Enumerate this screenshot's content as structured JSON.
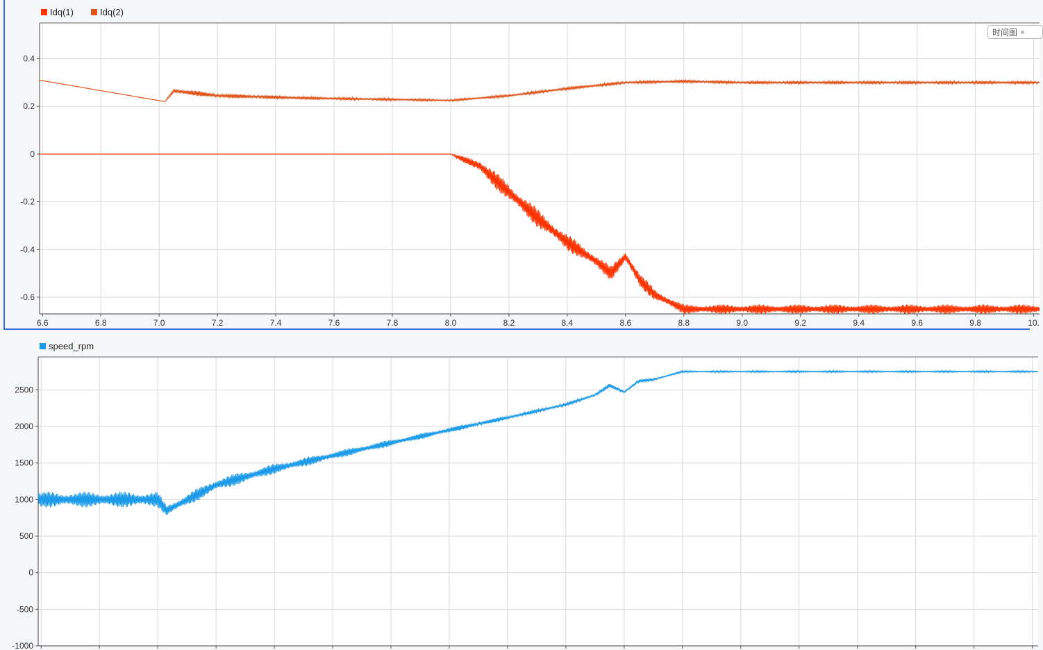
{
  "badge": {
    "label": "时间图"
  },
  "chart_data": [
    {
      "type": "line",
      "title": "",
      "xlabel": "",
      "ylabel": "",
      "xlim": [
        6.59,
        10.02
      ],
      "ylim": [
        -0.67,
        0.55
      ],
      "xticks": [
        6.6,
        6.8,
        7.0,
        7.2,
        7.4,
        7.6,
        7.8,
        8.0,
        8.2,
        8.4,
        8.6,
        8.8,
        9.0,
        9.2,
        9.4,
        9.6,
        9.8,
        10.0
      ],
      "xtick_labels": [
        "6.6",
        "6.8",
        "7.0",
        "7.2",
        "7.4",
        "7.6",
        "7.8",
        "8.0",
        "8.2",
        "8.4",
        "8.6",
        "8.8",
        "9.0",
        "9.2",
        "9.4",
        "9.6",
        "9.8",
        "10."
      ],
      "yticks": [
        0.4,
        0.2,
        0,
        -0.2,
        -0.4,
        -0.6
      ],
      "ytick_labels": [
        "0.4",
        "0.2",
        "0",
        "-0.2",
        "-0.4",
        "-0.6"
      ],
      "grid": true,
      "legend": "top-left",
      "series": [
        {
          "name": "Idq(1)",
          "color": "#ff3300",
          "x": [
            6.59,
            7.0,
            7.5,
            8.0,
            8.1,
            8.2,
            8.3,
            8.4,
            8.5,
            8.55,
            8.6,
            8.65,
            8.7,
            8.8,
            9.0,
            9.5,
            10.02
          ],
          "values": [
            0,
            0,
            0,
            0,
            -0.05,
            -0.16,
            -0.27,
            -0.37,
            -0.45,
            -0.5,
            -0.43,
            -0.53,
            -0.59,
            -0.65,
            -0.65,
            -0.65,
            -0.65
          ],
          "ripple": [
            0,
            0,
            0,
            0,
            0.03,
            0.04,
            0.04,
            0.035,
            0.03,
            0.03,
            0.03,
            0.03,
            0.025,
            0.02,
            0.02,
            0.02,
            0.02
          ]
        },
        {
          "name": "Idq(2)",
          "color": "#e0541a",
          "x": [
            6.59,
            7.02,
            7.05,
            7.2,
            7.5,
            8.0,
            8.2,
            8.4,
            8.6,
            8.8,
            9.0,
            9.5,
            10.02
          ],
          "values": [
            0.31,
            0.22,
            0.265,
            0.245,
            0.235,
            0.225,
            0.245,
            0.275,
            0.3,
            0.305,
            0.3,
            0.3,
            0.3
          ],
          "ripple": [
            0,
            0,
            0.012,
            0.009,
            0.006,
            0.004,
            0.005,
            0.006,
            0.006,
            0.006,
            0.006,
            0.006,
            0.006
          ]
        }
      ]
    },
    {
      "type": "line",
      "title": "",
      "xlabel": "",
      "ylabel": "",
      "xlim": [
        6.59,
        10.02
      ],
      "ylim": [
        -1000,
        2950
      ],
      "xticks": [
        6.6,
        6.8,
        7.0,
        7.2,
        7.4,
        7.6,
        7.8,
        8.0,
        8.2,
        8.4,
        8.6,
        8.8,
        9.0,
        9.2,
        9.4,
        9.6,
        9.8,
        10.0
      ],
      "yticks": [
        2500,
        2000,
        1500,
        1000,
        500,
        0,
        -500,
        -1000
      ],
      "ytick_labels": [
        "2500",
        "2000",
        "1500",
        "1000",
        "500",
        "0",
        "-500",
        "-1000"
      ],
      "grid": true,
      "legend": "top-left",
      "series": [
        {
          "name": "speed_rpm",
          "color": "#1a9ae8",
          "x": [
            6.59,
            7.0,
            7.03,
            7.2,
            7.4,
            7.6,
            8.0,
            8.2,
            8.4,
            8.5,
            8.55,
            8.6,
            8.65,
            8.7,
            8.8,
            9.0,
            9.5,
            10.02
          ],
          "values": [
            1000,
            1000,
            850,
            1200,
            1420,
            1600,
            1950,
            2120,
            2300,
            2430,
            2560,
            2470,
            2620,
            2640,
            2750,
            2750,
            2750,
            2750
          ],
          "ripple": [
            110,
            110,
            80,
            90,
            70,
            55,
            35,
            25,
            20,
            20,
            25,
            20,
            20,
            15,
            12,
            12,
            12,
            12
          ]
        }
      ]
    }
  ]
}
